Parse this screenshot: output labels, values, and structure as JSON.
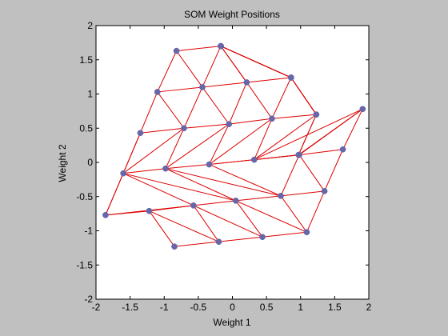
{
  "chart_data": {
    "type": "scatter",
    "title": "SOM Weight Positions",
    "xlabel": "Weight 1",
    "ylabel": "Weight 2",
    "xlim": [
      -2,
      2
    ],
    "ylim": [
      -2,
      2
    ],
    "xticks": [
      -2,
      -1.5,
      -1,
      -0.5,
      0,
      0.5,
      1,
      1.5,
      2
    ],
    "yticks": [
      -2,
      -1.5,
      -1,
      -0.5,
      0,
      0.5,
      1,
      1.5,
      2
    ],
    "xtick_labels": [
      "-2",
      "-1.5",
      "-1",
      "-0.5",
      "0",
      "0.5",
      "1",
      "1.5",
      "2"
    ],
    "ytick_labels": [
      "-2",
      "-1.5",
      "-1",
      "-0.5",
      "0",
      "0.5",
      "1",
      "1.5",
      "2"
    ],
    "grid": false,
    "neuron_grid": {
      "rows": 6,
      "cols": 6
    },
    "neurons": [
      [
        -0.85,
        -1.23
      ],
      [
        -0.2,
        -1.16
      ],
      [
        0.44,
        -1.09
      ],
      [
        1.09,
        -1.02
      ],
      [
        1.35,
        -0.42
      ],
      [
        1.62,
        0.19
      ],
      [
        -1.22,
        -0.71
      ],
      [
        -0.57,
        -0.63
      ],
      [
        0.05,
        -0.56
      ],
      [
        0.71,
        -0.49
      ],
      [
        0.98,
        0.11
      ],
      [
        1.91,
        0.78
      ],
      [
        -1.86,
        -0.77
      ],
      [
        -1.6,
        -0.16
      ],
      [
        -0.98,
        -0.09
      ],
      [
        -0.34,
        -0.03
      ],
      [
        0.32,
        0.04
      ],
      [
        0.97,
        0.11
      ],
      [
        -1.35,
        0.43
      ],
      [
        -0.71,
        0.5
      ],
      [
        -0.05,
        0.56
      ],
      [
        0.58,
        0.64
      ],
      [
        1.23,
        0.7
      ],
      [
        1.23,
        0.7
      ],
      [
        -1.1,
        1.03
      ],
      [
        -0.44,
        1.1
      ],
      [
        0.21,
        1.17
      ],
      [
        0.86,
        1.24
      ],
      [
        0.86,
        1.24
      ],
      [
        0.86,
        1.24
      ],
      [
        -0.82,
        1.63
      ],
      [
        -0.17,
        1.7
      ],
      [
        -0.17,
        1.7
      ],
      [
        -0.17,
        1.7
      ],
      [
        -0.17,
        1.7
      ],
      [
        -0.17,
        1.7
      ]
    ],
    "neuron_color": "#6666a8",
    "link_color": "#dd0000",
    "axes_background": "#ffffff",
    "figure_background": "#c0c0c0"
  }
}
